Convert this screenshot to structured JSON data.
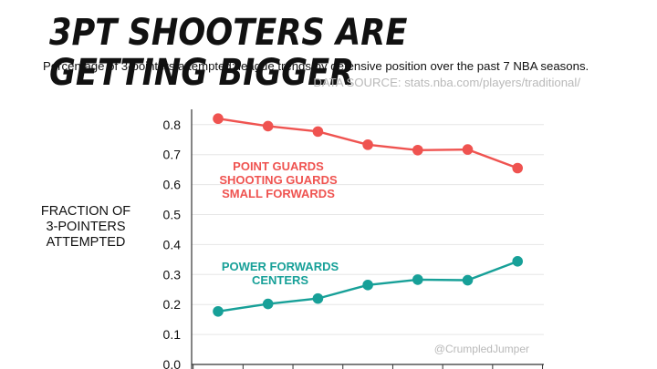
{
  "title": "3PT SHOOTERS ARE GETTING BIGGER",
  "subtitle": "Percentage of 3-pointers attempted;  league trends by defensive position over the past 7 NBA seasons.",
  "source": "DATA SOURCE: stats.nba.com/players/traditional/",
  "ylabel": "FRACTION OF\n3-POINTERS\nATTEMPTED",
  "credit": "@CrumpledJumper",
  "colors": {
    "guards": "#ef5350",
    "bigs": "#17a098",
    "grid": "#e6e6e6",
    "axis": "#333333",
    "credit": "#b9b9b9"
  },
  "chart_data": {
    "type": "line",
    "x": [
      1,
      2,
      3,
      4,
      5,
      6,
      7
    ],
    "ylim": [
      0.0,
      0.85
    ],
    "yticks": [
      "0.0",
      "0.1",
      "0.2",
      "0.3",
      "0.4",
      "0.5",
      "0.6",
      "0.7",
      "0.8"
    ],
    "grid": true,
    "series": [
      {
        "name": "POINT GUARDS\nSHOOTING GUARDS\nSMALL FORWARDS",
        "color": "#ef5350",
        "values": [
          0.82,
          0.795,
          0.777,
          0.733,
          0.715,
          0.717,
          0.655
        ]
      },
      {
        "name": "POWER FORWARDS\nCENTERS",
        "color": "#17a098",
        "values": [
          0.177,
          0.202,
          0.22,
          0.265,
          0.283,
          0.281,
          0.344
        ]
      }
    ]
  }
}
